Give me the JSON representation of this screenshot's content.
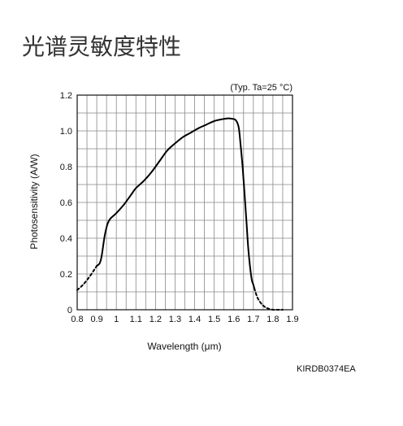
{
  "page": {
    "title": "光谱灵敏度特性",
    "doc_code": "KIRDB0374EA"
  },
  "chart_data": {
    "type": "line",
    "title": "",
    "annotation": "(Typ. Ta=25 °C)",
    "xlabel": "Wavelength (μm)",
    "ylabel": "Photosensitivity (A/W)",
    "xlim": [
      0.8,
      1.9
    ],
    "ylim": [
      0,
      1.2
    ],
    "x_ticks": [
      0.8,
      0.9,
      1.0,
      1.1,
      1.2,
      1.3,
      1.4,
      1.5,
      1.6,
      1.7,
      1.8,
      1.9
    ],
    "x_tick_labels": [
      "0.8",
      "0.9",
      "1",
      "1.1",
      "1.2",
      "1.3",
      "1.4",
      "1.5",
      "1.6",
      "1.7",
      "1.8",
      "1.9"
    ],
    "y_ticks": [
      0,
      0.2,
      0.4,
      0.6,
      0.8,
      1.0,
      1.2
    ],
    "y_tick_labels": [
      "0",
      "0.2",
      "0.4",
      "0.6",
      "0.8",
      "1.0",
      "1.2"
    ],
    "grid": true,
    "minor_grid_x": true,
    "series": [
      {
        "style": "dashed",
        "x": [
          0.8,
          0.83,
          0.86,
          0.885,
          0.9
        ],
        "y": [
          0.11,
          0.14,
          0.18,
          0.22,
          0.245
        ]
      },
      {
        "style": "solid",
        "x": [
          0.9,
          0.915,
          0.925,
          0.94,
          0.955,
          0.97,
          1.0,
          1.04,
          1.08,
          1.1,
          1.14,
          1.18,
          1.22,
          1.26,
          1.3,
          1.34,
          1.38,
          1.42,
          1.46,
          1.5,
          1.54,
          1.57,
          1.59,
          1.61,
          1.625,
          1.635,
          1.645,
          1.655,
          1.665,
          1.675,
          1.69,
          1.7,
          1.705
        ],
        "y": [
          0.245,
          0.26,
          0.3,
          0.41,
          0.48,
          0.51,
          0.54,
          0.59,
          0.65,
          0.68,
          0.72,
          0.77,
          0.83,
          0.89,
          0.93,
          0.965,
          0.99,
          1.015,
          1.035,
          1.055,
          1.065,
          1.07,
          1.068,
          1.06,
          1.02,
          0.92,
          0.8,
          0.65,
          0.49,
          0.33,
          0.18,
          0.14,
          0.12
        ]
      },
      {
        "style": "dashed",
        "x": [
          1.705,
          1.72,
          1.74,
          1.76,
          1.78,
          1.8,
          1.82,
          1.84,
          1.85
        ],
        "y": [
          0.12,
          0.07,
          0.035,
          0.015,
          0.005,
          0.0,
          0.0,
          0.0,
          0.0
        ]
      }
    ]
  }
}
